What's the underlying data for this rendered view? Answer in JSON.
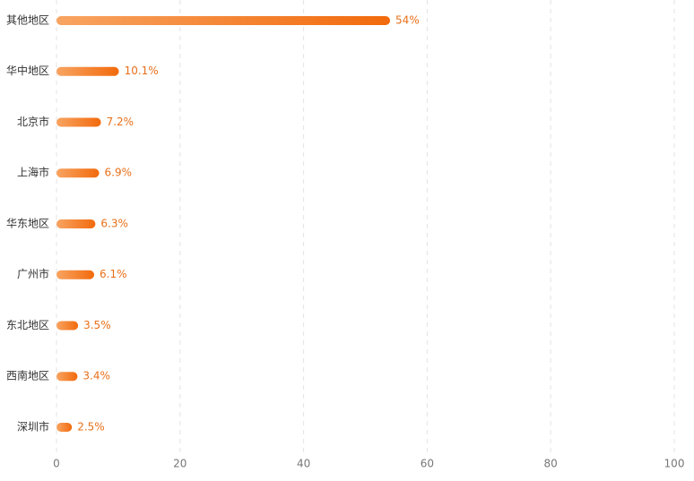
{
  "chart_data": {
    "type": "hbar",
    "categories": [
      "其他地区",
      "华中地区",
      "北京市",
      "上海市",
      "华东地区",
      "广州市",
      "东北地区",
      "西南地区",
      "深圳市"
    ],
    "values": [
      54,
      10.1,
      7.2,
      6.9,
      6.3,
      6.1,
      3.5,
      3.4,
      2.5
    ],
    "value_labels": [
      "54%",
      "10.1%",
      "7.2%",
      "6.9%",
      "6.3%",
      "6.1%",
      "3.5%",
      "3.4%",
      "2.5%"
    ],
    "gradient": [
      "#f8a462",
      "#f26a0c"
    ],
    "xlim": [
      0,
      100
    ],
    "xticks": [
      0,
      20,
      40,
      60,
      80,
      100
    ],
    "grid": true
  }
}
